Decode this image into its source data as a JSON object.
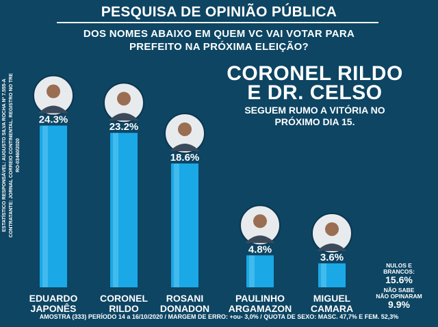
{
  "header": {
    "title": "PESQUISA DE OPINIÃO PÚBLICA",
    "question_line1": "DOS NOMES ABAIXO EM QUEM VC VAI VOTAR PARA",
    "question_line2": "PREFEITO NA PRÓXIMA ELEIÇÃO?"
  },
  "side_text": {
    "line1": "ESTATÍSTICO RESPONSÁVEL: AUGUSTO SILVA ROCHA Nº 7.555-A",
    "line2": "CONTRATANTE: JORNAL CORREIO CONTINENTAL. REGISTRO NO TRE RO-03460/2020"
  },
  "headline": {
    "line1": "CORONEL RILDO",
    "line2": "E DR. CELSO",
    "sub1": "SEGUEM RUMO A VITÓRIA NO",
    "sub2": "PRÓXIMO DIA 15."
  },
  "extras": {
    "nulos_label1": "NULOS E",
    "nulos_label2": "BRANCOS:",
    "nulos_value": "15.6%",
    "nao_sabe_label1": "NÃO SABE",
    "nao_sabe_label2": "NÃO OPINARAM",
    "nao_sabe_value": "9.9%"
  },
  "footer": "AMOSTRA (333) PERÍODO 14 a 16/10/2020 / MARGEM DE ERRO: +ou- 3,0% / QUOTA DE SEXO: MASC. 47,7% E FEM. 52,3%",
  "colors": {
    "background": "#0d4563",
    "bar": "#1aa8e6",
    "bar_light": "#62c8f3",
    "text": "#ffffff"
  },
  "chart_data": {
    "type": "bar",
    "categories": [
      [
        "EDUARDO",
        "JAPONÊS"
      ],
      [
        "CORONEL",
        "RILDO"
      ],
      [
        "ROSANI",
        "DONADON"
      ],
      [
        "PAULINHO",
        "ARGAMAZON"
      ],
      [
        "MIGUEL",
        "CAMARA"
      ]
    ],
    "values": [
      24.3,
      23.2,
      18.6,
      4.8,
      3.6
    ],
    "data_labels": [
      "24.3%",
      "23.2%",
      "18.6%",
      "4.8%",
      "3.6%"
    ],
    "photo_icons": [
      "candidate-photo-icon",
      "candidate-photo-icon",
      "candidate-photo-icon",
      "candidate-photo-icon",
      "candidate-photo-icon"
    ],
    "ylim": [
      0,
      25
    ],
    "grid": false,
    "legend": "none"
  }
}
